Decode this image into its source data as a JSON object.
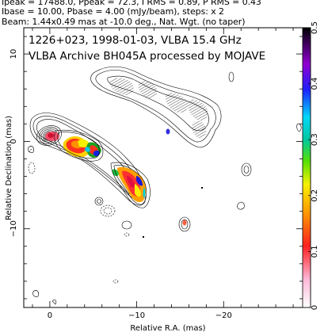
{
  "header": {
    "line1": "Ipeak = 17488.0, Ppeak = 72.3, I RMS = 0.89, P RMS = 0.43",
    "line2": "Ibase = 10.00, Pbase = 4.00 (mJy/beam), steps: x 2",
    "line3": "Beam: 1.44x0.49 mas at -10.0 deg., Nat. Wgt. (no taper)"
  },
  "plot": {
    "title_line1": "1226+023, 1998-01-03, VLBA 15.4 GHz",
    "title_line2": "VLBA Archive BH045A processed by MOJAVE"
  },
  "chart_data": {
    "type": "heatmap",
    "xlabel": "Relative R.A. (mas)",
    "ylabel": "Relative Declination (mas)",
    "xlim": [
      3,
      -30
    ],
    "ylim": [
      -19,
      13
    ],
    "xticks": [
      0,
      -10,
      -20
    ],
    "yticks": [
      10,
      0,
      -10
    ],
    "colorbar": {
      "min": 0.0,
      "max": 0.5,
      "ticks": [
        "0",
        "0.1",
        "0.2",
        "0.3",
        "0.4",
        "0.5"
      ]
    },
    "beam": {
      "major_mas": 1.44,
      "minor_mas": 0.49,
      "pa_deg": -10.0
    }
  }
}
